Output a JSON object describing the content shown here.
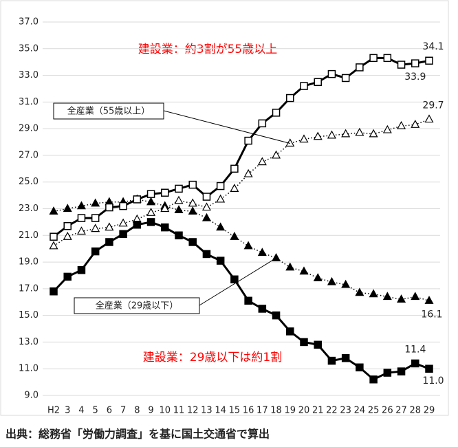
{
  "chart_data": {
    "type": "line",
    "categories": [
      "H2",
      "3",
      "4",
      "5",
      "6",
      "7",
      "8",
      "9",
      "10",
      "11",
      "12",
      "13",
      "14",
      "15",
      "16",
      "17",
      "18",
      "19",
      "20",
      "21",
      "22",
      "23",
      "24",
      "25",
      "26",
      "27",
      "28",
      "29"
    ],
    "ylim": [
      9,
      37
    ],
    "yticks": [
      {
        "value": 9,
        "label": "9.0"
      },
      {
        "value": 11,
        "label": "11.0"
      },
      {
        "value": 13,
        "label": "13.0"
      },
      {
        "value": 15,
        "label": "15.0"
      },
      {
        "value": 17,
        "label": "17.0"
      },
      {
        "value": 19,
        "label": "19.0"
      },
      {
        "value": 21,
        "label": "21.0"
      },
      {
        "value": 23,
        "label": "23.0"
      },
      {
        "value": 25,
        "label": "25.0"
      },
      {
        "value": 27,
        "label": "27.0"
      },
      {
        "value": 29,
        "label": "29.0"
      },
      {
        "value": 31,
        "label": "31.0"
      },
      {
        "value": 33,
        "label": "33.0"
      },
      {
        "value": 35,
        "label": "35.0"
      },
      {
        "value": 37,
        "label": "37.0"
      }
    ],
    "grid": true,
    "series": [
      {
        "color": "#000000",
        "line": "solid",
        "marker": "square-open",
        "values": [
          20.9,
          21.7,
          22.3,
          22.3,
          23.1,
          23.2,
          23.7,
          24.1,
          24.2,
          24.5,
          24.8,
          23.9,
          24.7,
          26.0,
          28.1,
          29.4,
          30.2,
          31.3,
          32.2,
          32.5,
          33.1,
          32.8,
          33.6,
          34.3,
          34.3,
          33.8,
          33.9,
          34.1
        ],
        "value_labels": [
          null,
          null,
          null,
          null,
          null,
          null,
          null,
          null,
          null,
          null,
          null,
          null,
          null,
          null,
          null,
          null,
          null,
          null,
          null,
          null,
          null,
          null,
          null,
          null,
          null,
          null,
          "33.9",
          "34.1"
        ]
      },
      {
        "name": "全産業（55歳以上）",
        "color": "#000000",
        "line": "dotted",
        "marker": "triangle-open",
        "values": [
          20.2,
          20.9,
          21.3,
          21.5,
          21.6,
          21.9,
          22.2,
          22.7,
          23.0,
          23.6,
          23.4,
          23.1,
          23.7,
          24.5,
          25.6,
          26.5,
          27.0,
          27.9,
          28.2,
          28.4,
          28.5,
          28.6,
          28.7,
          28.6,
          28.9,
          29.2,
          29.3,
          29.7
        ],
        "value_labels": [
          null,
          null,
          null,
          null,
          null,
          null,
          null,
          null,
          null,
          null,
          null,
          null,
          null,
          null,
          null,
          null,
          null,
          null,
          null,
          null,
          null,
          null,
          null,
          null,
          null,
          null,
          null,
          "29.7"
        ]
      },
      {
        "name": "全産業（29歳以下）",
        "color": "#000000",
        "line": "dotted",
        "marker": "triangle-filled",
        "values": [
          22.8,
          23.0,
          23.2,
          23.4,
          23.5,
          23.5,
          23.7,
          23.5,
          23.2,
          22.9,
          22.8,
          22.3,
          21.6,
          20.9,
          20.2,
          19.7,
          19.3,
          18.6,
          18.3,
          17.8,
          17.5,
          17.3,
          16.7,
          16.6,
          16.4,
          16.2,
          16.4,
          16.1
        ],
        "value_labels": [
          null,
          null,
          null,
          null,
          null,
          null,
          null,
          null,
          null,
          null,
          null,
          null,
          null,
          null,
          null,
          null,
          null,
          null,
          null,
          null,
          null,
          null,
          null,
          null,
          null,
          null,
          null,
          "16.1"
        ]
      },
      {
        "color": "#000000",
        "line": "solid",
        "marker": "square-filled",
        "values": [
          16.8,
          17.9,
          18.4,
          19.8,
          20.5,
          21.1,
          21.8,
          22.0,
          21.6,
          21.0,
          20.5,
          19.6,
          19.1,
          17.7,
          16.1,
          15.5,
          15.0,
          13.8,
          13.0,
          12.8,
          11.6,
          11.8,
          11.1,
          10.2,
          10.7,
          10.8,
          11.4,
          11.0
        ],
        "value_labels": [
          null,
          null,
          null,
          null,
          null,
          null,
          null,
          null,
          null,
          null,
          null,
          null,
          null,
          null,
          null,
          null,
          null,
          null,
          null,
          null,
          null,
          null,
          null,
          null,
          null,
          null,
          "11.4",
          "11.0"
        ]
      }
    ],
    "annotations": [
      "建設業：約3割が55歳以上",
      "建設業：29歳以下は約1割"
    ],
    "source": "出典：総務省「労働力調査」を基に国土交通省で算出"
  }
}
